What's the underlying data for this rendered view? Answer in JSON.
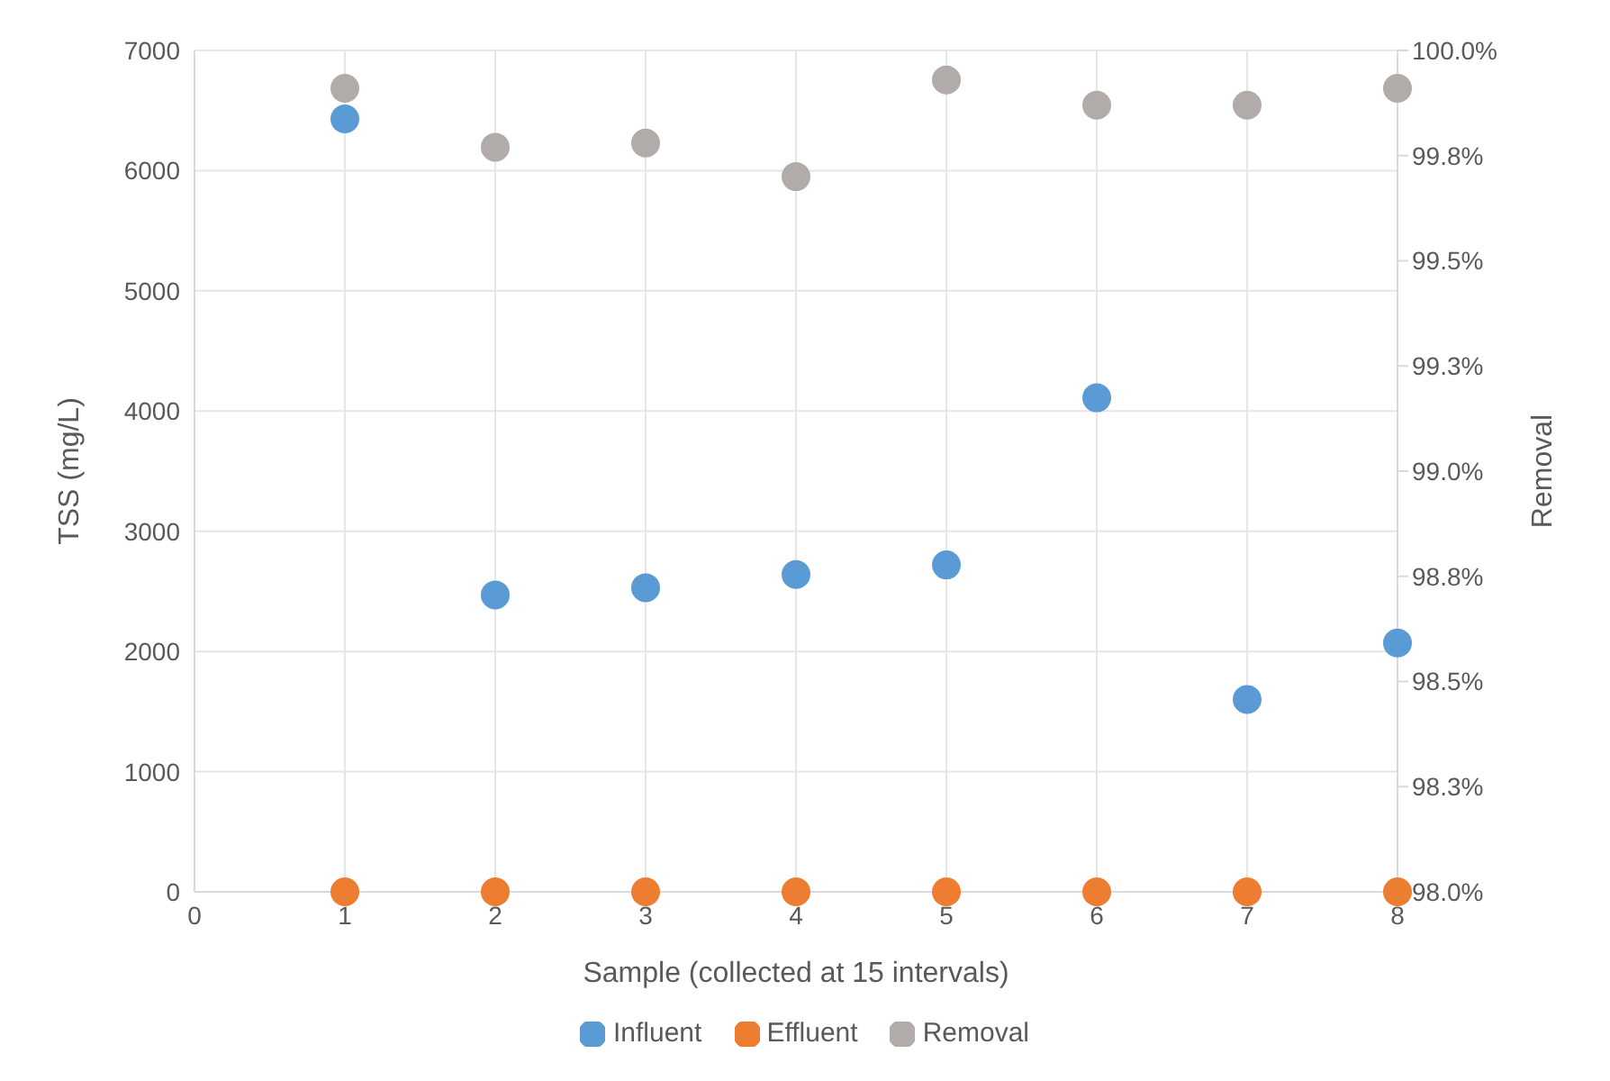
{
  "chart_data": {
    "type": "scatter",
    "xlabel": "Sample (collected at 15 intervals)",
    "ylabel": "TSS (mg/L)",
    "y2label": "Removal",
    "x": [
      1,
      2,
      3,
      4,
      5,
      6,
      7,
      8
    ],
    "series": [
      {
        "name": "Influent",
        "color": "#5b9bd5",
        "values": [
          6430,
          2470,
          2530,
          2640,
          2720,
          4110,
          1600,
          2070
        ]
      },
      {
        "name": "Effluent",
        "color": "#ed7d31",
        "values": [
          0,
          0,
          0,
          0,
          0,
          0,
          0,
          0
        ]
      },
      {
        "name": "Removal",
        "color": "#b1acaa",
        "axis": "y2",
        "values": [
          99.91,
          99.77,
          99.78,
          99.7,
          99.93,
          99.87,
          99.87,
          99.91
        ]
      }
    ],
    "xlim": [
      0,
      8
    ],
    "xticks": [
      0,
      1,
      2,
      3,
      4,
      5,
      6,
      7,
      8
    ],
    "ylim": [
      0,
      7000
    ],
    "yticks": [
      0,
      1000,
      2000,
      3000,
      4000,
      5000,
      6000,
      7000
    ],
    "y2lim": [
      98,
      100
    ],
    "y2ticks": [
      {
        "value": 98,
        "label": "98.0%"
      },
      {
        "value": 98.25,
        "label": "98.3%"
      },
      {
        "value": 98.5,
        "label": "98.5%"
      },
      {
        "value": 98.75,
        "label": "98.8%"
      },
      {
        "value": 99,
        "label": "99.0%"
      },
      {
        "value": 99.25,
        "label": "99.3%"
      },
      {
        "value": 99.5,
        "label": "99.5%"
      },
      {
        "value": 99.75,
        "label": "99.8%"
      },
      {
        "value": 100,
        "label": "100.0%"
      }
    ],
    "grid": true,
    "legend": "bottom",
    "marker": "circle"
  }
}
